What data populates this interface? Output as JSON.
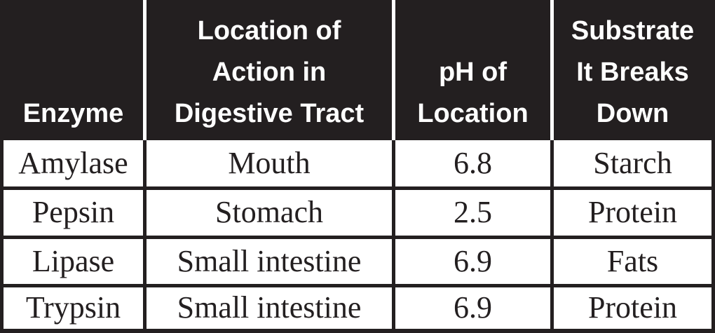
{
  "colors": {
    "header_bg": "#231f20",
    "header_text": "#ffffff",
    "header_divider": "#ffffff",
    "body_bg": "#ffffff",
    "body_text": "#231f20",
    "border": "#231f20"
  },
  "table": {
    "header": [
      {
        "label": "Enzyme",
        "lines": [
          "Enzyme"
        ]
      },
      {
        "label": "Location of Action in Digestive Tract",
        "lines": [
          "Location of",
          "Action in",
          "Digestive Tract"
        ]
      },
      {
        "label": "pH of Location",
        "lines": [
          "pH of",
          "Location"
        ]
      },
      {
        "label": "Substrate It Breaks Down",
        "lines": [
          "Substrate",
          "It Breaks",
          "Down"
        ]
      }
    ],
    "rows": [
      [
        "Amylase",
        "Mouth",
        "6.8",
        "Starch"
      ],
      [
        "Pepsin",
        "Stomach",
        "2.5",
        "Protein"
      ],
      [
        "Lipase",
        "Small intestine",
        "6.9",
        "Fats"
      ],
      [
        "Trypsin",
        "Small intestine",
        "6.9",
        "Protein"
      ]
    ]
  },
  "chart_data": {
    "type": "table",
    "title": "",
    "columns": [
      "Enzyme",
      "Location of Action in Digestive Tract",
      "pH of Location",
      "Substrate It Breaks Down"
    ],
    "rows": [
      [
        "Amylase",
        "Mouth",
        "6.8",
        "Starch"
      ],
      [
        "Pepsin",
        "Stomach",
        "2.5",
        "Protein"
      ],
      [
        "Lipase",
        "Small intestine",
        "6.9",
        "Fats"
      ],
      [
        "Trypsin",
        "Small intestine",
        "6.9",
        "Protein"
      ]
    ],
    "ph_values": [
      6.8,
      2.5,
      6.9,
      6.9
    ],
    "layout": {
      "header_background": "#231f20",
      "header_rows_bottom_aligned": true,
      "grid": "black 5px borders, white dividers inside header"
    }
  }
}
